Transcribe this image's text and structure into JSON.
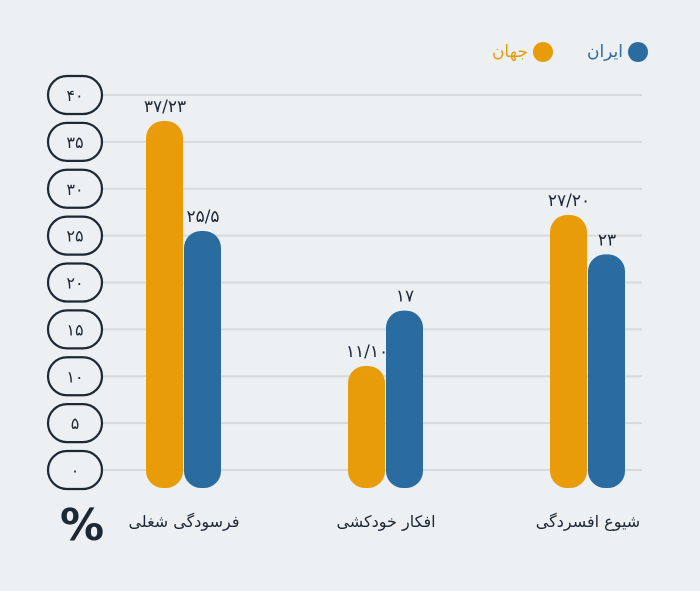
{
  "chart_data": {
    "type": "bar",
    "categories": [
      "فرسودگی شغلی",
      "افکار خودکشی",
      "شیوع افسردگی"
    ],
    "series": [
      {
        "name": "جهان",
        "color": "#e99c0a",
        "values": [
          37.23,
          11.1,
          27.2
        ],
        "labels": [
          "۳۷/۲۳",
          "۱۱/۱۰",
          "۲۷/۲۰"
        ]
      },
      {
        "name": "ایران",
        "color": "#2a6ba0",
        "values": [
          25.5,
          17,
          23
        ],
        "labels": [
          "۲۵/۵",
          "۱۷",
          "۲۳"
        ]
      }
    ],
    "yticks": [
      0,
      5,
      10,
      15,
      20,
      25,
      30,
      35,
      40
    ],
    "ytick_labels": [
      "۰",
      "۵",
      "۱۰",
      "۱۵",
      "۲۰",
      "۲۵",
      "۳۰",
      "۳۵",
      "۴۰"
    ],
    "ylim": [
      0,
      40
    ],
    "ylabel": "%",
    "grid": true,
    "legend": "top-right"
  }
}
